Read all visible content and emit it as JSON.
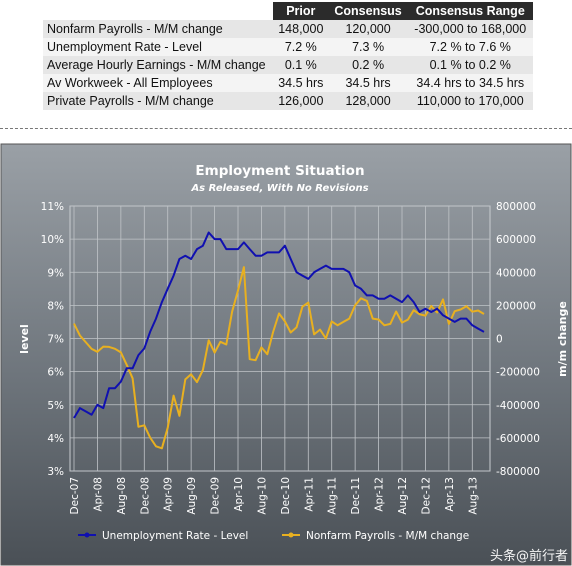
{
  "table": {
    "headers": [
      "",
      "Prior",
      "Consensus",
      "Consensus Range"
    ],
    "rows": [
      {
        "label": "Nonfarm Payrolls - M/M change",
        "prior": "148,000",
        "consensus": "120,000",
        "range": "-300,000  to 168,000"
      },
      {
        "label": "Unemployment Rate - Level",
        "prior": "7.2 %",
        "consensus": "7.3 %",
        "range": "7.2 % to 7.6 %"
      },
      {
        "label": "Average Hourly Earnings - M/M change",
        "prior": "0.1 %",
        "consensus": "0.2 %",
        "range": "0.1 % to 0.2 %"
      },
      {
        "label": "Av Workweek - All Employees",
        "prior": "34.5 hrs",
        "consensus": "34.5 hrs",
        "range": "34.4 hrs to 34.5 hrs"
      },
      {
        "label": "Private Payrolls - M/M change",
        "prior": "126,000",
        "consensus": "128,000",
        "range": "110,000  to 170,000"
      }
    ]
  },
  "chart_data": {
    "type": "line",
    "title": "Employment Situation",
    "subtitle": "As Released, With No Revisions",
    "ylabel": "level",
    "y2label": "m/m change",
    "ylim": [
      3,
      11
    ],
    "y2lim": [
      -800000,
      800000
    ],
    "yticks": [
      "3%",
      "4%",
      "5%",
      "6%",
      "7%",
      "8%",
      "9%",
      "10%",
      "11%"
    ],
    "y2ticks": [
      "-800000",
      "-600000",
      "-400000",
      "-200000",
      "0",
      "200000",
      "400000",
      "600000",
      "800000"
    ],
    "xticks": [
      "Dec-07",
      "Apr-08",
      "Aug-08",
      "Dec-08",
      "Apr-09",
      "Aug-09",
      "Dec-09",
      "Apr-10",
      "Aug-10",
      "Dec-10",
      "Apr-11",
      "Aug-11",
      "Dec-11",
      "Apr-12",
      "Aug-12",
      "Dec-12",
      "Apr-13",
      "Aug-13"
    ],
    "grid": true,
    "legend_position": "bottom",
    "series": [
      {
        "name": "Unemployment Rate - Level",
        "axis": "left",
        "color": "#1010b0",
        "values": [
          4.6,
          4.9,
          4.8,
          4.7,
          5.0,
          4.9,
          5.5,
          5.5,
          5.7,
          6.1,
          6.1,
          6.5,
          6.7,
          7.2,
          7.6,
          8.1,
          8.5,
          8.9,
          9.4,
          9.5,
          9.4,
          9.7,
          9.8,
          10.2,
          10.0,
          10.0,
          9.7,
          9.7,
          9.7,
          9.9,
          9.7,
          9.5,
          9.5,
          9.6,
          9.6,
          9.6,
          9.8,
          9.4,
          9.0,
          8.9,
          8.8,
          9.0,
          9.1,
          9.2,
          9.1,
          9.1,
          9.1,
          9.0,
          8.6,
          8.5,
          8.3,
          8.3,
          8.2,
          8.2,
          8.3,
          8.2,
          8.1,
          8.3,
          8.1,
          7.8,
          7.9,
          7.8,
          7.9,
          7.7,
          7.6,
          7.5,
          7.6,
          7.6,
          7.4,
          7.3,
          7.2
        ]
      },
      {
        "name": "Nonfarm Payrolls - M/M change",
        "axis": "right",
        "color": "#e8b020",
        "values": [
          90000,
          18000,
          -22000,
          -63000,
          -80000,
          -49000,
          -51000,
          -62000,
          -84000,
          -159000,
          -240000,
          -533000,
          -524000,
          -598000,
          -651000,
          -663000,
          -539000,
          -345000,
          -467000,
          -247000,
          -216000,
          -263000,
          -190000,
          -11000,
          -85000,
          -20000,
          -36000,
          162000,
          290000,
          431000,
          -125000,
          -131000,
          -54000,
          -95000,
          39000,
          151000,
          103000,
          36000,
          68000,
          192000,
          217000,
          25000,
          54000,
          0,
          103000,
          80000,
          100000,
          120000,
          200000,
          243000,
          227000,
          120000,
          115000,
          80000,
          88000,
          163000,
          96000,
          114000,
          171000,
          146000,
          138000,
          196000,
          157000,
          236000,
          88000,
          165000,
          175000,
          195000,
          162000,
          169000,
          148000
        ]
      }
    ]
  },
  "watermark": "头条@前行者"
}
